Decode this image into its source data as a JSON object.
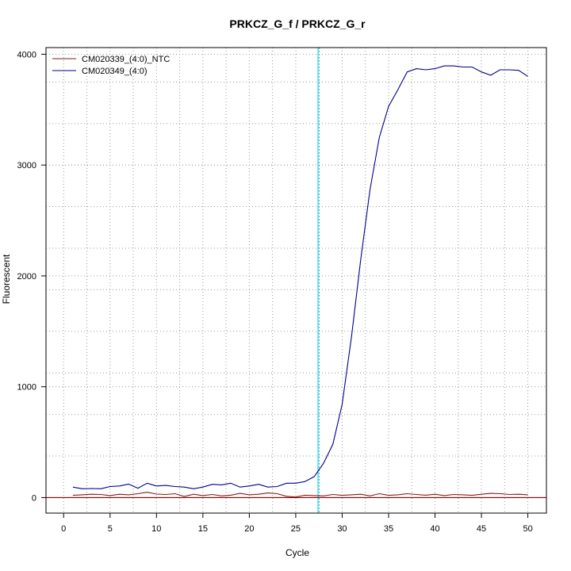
{
  "chart_data": {
    "type": "line",
    "title": "PRKCZ_G_f / PRKCZ_G_r",
    "xlabel": "Cycle",
    "ylabel": "Fluorescent",
    "xlim": [
      -1.9,
      52
    ],
    "ylim": [
      -140,
      4060
    ],
    "x_ticks": [
      0,
      5,
      10,
      15,
      20,
      25,
      30,
      35,
      40,
      45,
      50
    ],
    "y_ticks": [
      0,
      1000,
      2000,
      3000,
      4000
    ],
    "x_minor_grid": [
      2.5,
      7.5,
      12.5,
      17.5,
      22.5,
      27.5,
      32.5,
      37.5,
      42.5,
      47.5
    ],
    "y_minor_grid": [
      375,
      750,
      1125,
      1500,
      1875,
      2250,
      2625,
      3000,
      3375,
      3750
    ],
    "grid": true,
    "legend_position": "top-left",
    "threshold": {
      "x": 27.4,
      "color": "#00e5ee",
      "style": "solid"
    },
    "baseline": {
      "y": 0,
      "color": "#8b0000"
    },
    "series": [
      {
        "name": "CM020339_(4:0)_NTC",
        "color": "#8b1a1a",
        "x": [
          1,
          2,
          3,
          4,
          5,
          6,
          7,
          8,
          9,
          10,
          11,
          12,
          13,
          14,
          15,
          16,
          17,
          18,
          19,
          20,
          21,
          22,
          23,
          24,
          25,
          26,
          27,
          28,
          29,
          30,
          31,
          32,
          33,
          34,
          35,
          36,
          37,
          38,
          39,
          40,
          41,
          42,
          43,
          44,
          45,
          46,
          47,
          48,
          49,
          50
        ],
        "values": [
          20,
          25,
          30,
          28,
          18,
          30,
          25,
          35,
          48,
          32,
          28,
          35,
          10,
          30,
          18,
          28,
          15,
          22,
          38,
          25,
          30,
          42,
          35,
          12,
          5,
          22,
          18,
          15,
          28,
          20,
          25,
          30,
          15,
          35,
          20,
          25,
          35,
          28,
          22,
          30,
          18,
          28,
          25,
          20,
          30,
          38,
          35,
          28,
          30,
          25
        ]
      },
      {
        "name": "CM020349_(4:0)",
        "color": "#00008b",
        "x": [
          1,
          2,
          3,
          4,
          5,
          6,
          7,
          8,
          9,
          10,
          11,
          12,
          13,
          14,
          15,
          16,
          17,
          18,
          19,
          20,
          21,
          22,
          23,
          24,
          25,
          26,
          27,
          28,
          29,
          30,
          31,
          32,
          33,
          34,
          35,
          36,
          37,
          38,
          39,
          40,
          41,
          42,
          43,
          44,
          45,
          46,
          47,
          48,
          49,
          50
        ],
        "values": [
          95,
          80,
          82,
          80,
          100,
          105,
          122,
          85,
          130,
          105,
          110,
          100,
          95,
          80,
          95,
          120,
          115,
          130,
          95,
          105,
          120,
          95,
          100,
          130,
          130,
          145,
          190,
          310,
          480,
          840,
          1450,
          2150,
          2780,
          3250,
          3530,
          3680,
          3840,
          3870,
          3860,
          3870,
          3895,
          3895,
          3885,
          3885,
          3840,
          3810,
          3860,
          3860,
          3855,
          3800
        ]
      }
    ]
  }
}
